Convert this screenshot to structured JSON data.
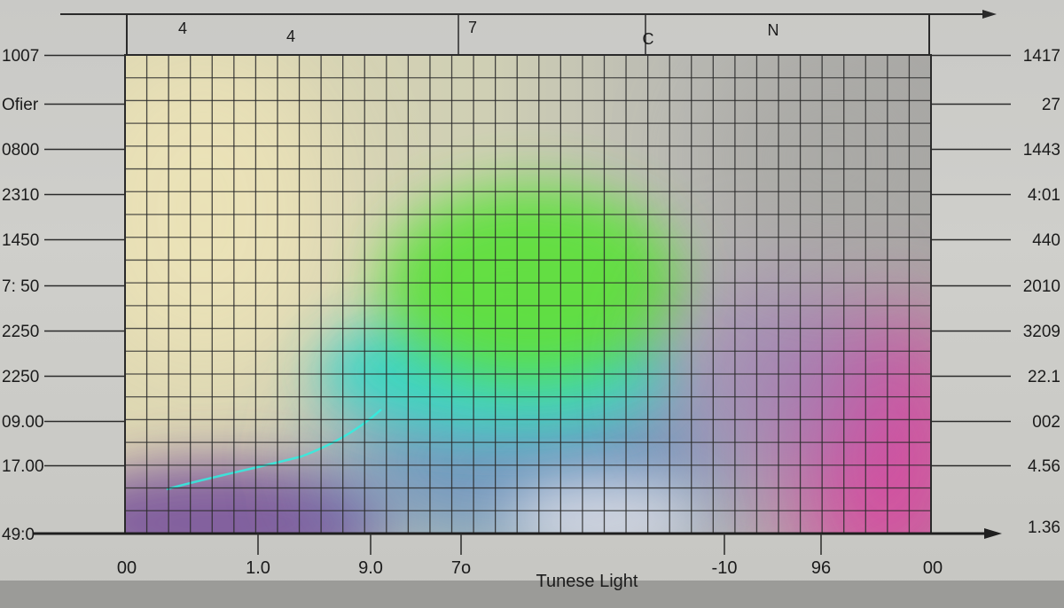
{
  "chart_data": {
    "type": "heatmap",
    "title": "",
    "xlabel": "Tunese Light",
    "ylabel": "",
    "top_tick_labels": [
      "4",
      "4",
      "7",
      "C",
      "N"
    ],
    "left_tick_labels": [
      "1007",
      "Ofier",
      "0800",
      "2310",
      "1450",
      "7: 50",
      "2250",
      "2250",
      "09.00",
      "17.00",
      "49:0"
    ],
    "right_tick_labels": [
      "1417",
      "27",
      "1443",
      "4:01",
      "440",
      "2010",
      "3209",
      "22.1",
      "002",
      "4.56",
      "1.36"
    ],
    "bottom_tick_labels": [
      "00",
      "1.0",
      "9.0",
      "7o",
      "-10",
      "96",
      "00"
    ],
    "legend": "none",
    "grid": true,
    "colors": {
      "cream": "#ece3b8",
      "green": "#5fe03d",
      "cyan": "#37d6c6",
      "blue": "#5a89c2",
      "purple": "#7e5a9d",
      "magenta": "#d9449e",
      "gray": "#a8a7a4"
    }
  }
}
